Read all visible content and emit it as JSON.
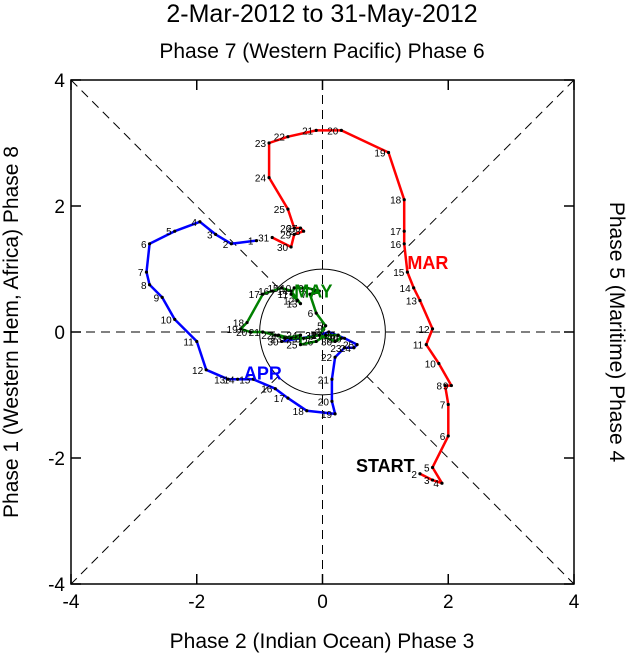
{
  "chart_data": {
    "type": "line",
    "title": "2-Mar-2012 to 31-May-2012",
    "top_label": "Phase 7 (Western Pacific) Phase 6",
    "bottom_label": "Phase 2 (Indian Ocean) Phase 3",
    "left_label": "Phase 1 (Western Hem, Africa) Phase 8",
    "right_label": "Phase 5 (Maritime) Phase 4",
    "xlim": [
      -4,
      4
    ],
    "ylim": [
      -4,
      4
    ],
    "xticks": [
      "-4",
      "-2",
      "0",
      "2",
      "4"
    ],
    "yticks": [
      "-4",
      "-2",
      "0",
      "2",
      "4"
    ],
    "start_label": "START",
    "colors": {
      "MAR": "#ff0000",
      "APR": "#0000ff",
      "MAY": "#008000"
    },
    "series": [
      {
        "name": "MAR",
        "color": "#ff0000",
        "label_pos": [
          1.35,
          1.0
        ],
        "points": [
          {
            "day": "2",
            "x": 1.55,
            "y": -2.25
          },
          {
            "day": "3",
            "x": 1.75,
            "y": -2.35
          },
          {
            "day": "4",
            "x": 1.9,
            "y": -2.4
          },
          {
            "day": "5",
            "x": 1.75,
            "y": -2.15
          },
          {
            "day": "6",
            "x": 2.0,
            "y": -1.65
          },
          {
            "day": "7",
            "x": 2.0,
            "y": -1.15
          },
          {
            "day": "8",
            "x": 1.95,
            "y": -0.85
          },
          {
            "day": "9",
            "x": 2.05,
            "y": -0.85
          },
          {
            "day": "10",
            "x": 1.85,
            "y": -0.5
          },
          {
            "day": "11",
            "x": 1.65,
            "y": -0.2
          },
          {
            "day": "12",
            "x": 1.75,
            "y": 0.05
          },
          {
            "day": "13",
            "x": 1.55,
            "y": 0.5
          },
          {
            "day": "14",
            "x": 1.45,
            "y": 0.7
          },
          {
            "day": "15",
            "x": 1.35,
            "y": 0.95
          },
          {
            "day": "16",
            "x": 1.3,
            "y": 1.4
          },
          {
            "day": "17",
            "x": 1.3,
            "y": 1.6
          },
          {
            "day": "18",
            "x": 1.3,
            "y": 2.1
          },
          {
            "day": "19",
            "x": 1.05,
            "y": 2.85
          },
          {
            "day": "20",
            "x": 0.3,
            "y": 3.2
          },
          {
            "day": "21",
            "x": -0.1,
            "y": 3.2
          },
          {
            "day": "22",
            "x": -0.55,
            "y": 3.1
          },
          {
            "day": "23",
            "x": -0.85,
            "y": 3.0
          },
          {
            "day": "24",
            "x": -0.85,
            "y": 2.45
          },
          {
            "day": "25",
            "x": -0.55,
            "y": 1.95
          },
          {
            "day": "26",
            "x": -0.45,
            "y": 1.65
          },
          {
            "day": "27",
            "x": -0.35,
            "y": 1.65
          },
          {
            "day": "28",
            "x": -0.3,
            "y": 1.6
          },
          {
            "day": "29",
            "x": -0.45,
            "y": 1.55
          },
          {
            "day": "30",
            "x": -0.5,
            "y": 1.35
          },
          {
            "day": "31",
            "x": -0.8,
            "y": 1.5
          }
        ]
      },
      {
        "name": "APR",
        "color": "#0000ff",
        "label_pos": [
          -1.25,
          -0.75
        ],
        "points": [
          {
            "day": "1",
            "x": -1.05,
            "y": 1.45
          },
          {
            "day": "2",
            "x": -1.45,
            "y": 1.4
          },
          {
            "day": "3",
            "x": -1.7,
            "y": 1.55
          },
          {
            "day": "4",
            "x": -1.95,
            "y": 1.75
          },
          {
            "day": "5",
            "x": -2.35,
            "y": 1.6
          },
          {
            "day": "6",
            "x": -2.75,
            "y": 1.4
          },
          {
            "day": "7",
            "x": -2.8,
            "y": 0.95
          },
          {
            "day": "8",
            "x": -2.75,
            "y": 0.75
          },
          {
            "day": "9",
            "x": -2.55,
            "y": 0.55
          },
          {
            "day": "10",
            "x": -2.35,
            "y": 0.2
          },
          {
            "day": "11",
            "x": -2.0,
            "y": -0.15
          },
          {
            "day": "12",
            "x": -1.85,
            "y": -0.6
          },
          {
            "day": "13",
            "x": -1.5,
            "y": -0.75
          },
          {
            "day": "14",
            "x": -1.35,
            "y": -0.75
          },
          {
            "day": "15",
            "x": -1.1,
            "y": -0.75
          },
          {
            "day": "16",
            "x": -0.75,
            "y": -0.9
          },
          {
            "day": "17",
            "x": -0.55,
            "y": -1.05
          },
          {
            "day": "18",
            "x": -0.25,
            "y": -1.25
          },
          {
            "day": "19",
            "x": 0.2,
            "y": -1.3
          },
          {
            "day": "20",
            "x": 0.15,
            "y": -1.1
          },
          {
            "day": "21",
            "x": 0.15,
            "y": -0.75
          },
          {
            "day": "22",
            "x": 0.2,
            "y": -0.4
          },
          {
            "day": "23",
            "x": 0.35,
            "y": -0.25
          },
          {
            "day": "24",
            "x": 0.5,
            "y": -0.25
          },
          {
            "day": "25",
            "x": 0.55,
            "y": -0.2
          },
          {
            "day": "26",
            "x": 0.35,
            "y": -0.1
          },
          {
            "day": "27",
            "x": 0.1,
            "y": 0.0
          },
          {
            "day": "28",
            "x": -0.05,
            "y": -0.05
          },
          {
            "day": "29",
            "x": -0.35,
            "y": -0.1
          },
          {
            "day": "30",
            "x": -0.65,
            "y": -0.15
          }
        ]
      },
      {
        "name": "MAY",
        "color": "#008000",
        "label_pos": [
          -0.45,
          0.55
        ],
        "points": [
          {
            "day": "1",
            "x": -0.7,
            "y": -0.05
          },
          {
            "day": "2",
            "x": -0.5,
            "y": -0.1
          },
          {
            "day": "3",
            "x": -0.3,
            "y": -0.1
          },
          {
            "day": "4",
            "x": -0.05,
            "y": -0.05
          },
          {
            "day": "5",
            "x": 0.05,
            "y": 0.1
          },
          {
            "day": "6",
            "x": -0.1,
            "y": 0.3
          },
          {
            "day": "7",
            "x": -0.2,
            "y": 0.6
          },
          {
            "day": "8",
            "x": -0.05,
            "y": 0.65
          },
          {
            "day": "9",
            "x": -0.25,
            "y": 0.7
          },
          {
            "day": "10",
            "x": -0.45,
            "y": 0.7
          },
          {
            "day": "11",
            "x": -0.5,
            "y": 0.6
          },
          {
            "day": "12",
            "x": -0.4,
            "y": 0.5
          },
          {
            "day": "13",
            "x": -0.35,
            "y": 0.45
          },
          {
            "day": "14",
            "x": -0.5,
            "y": 0.65
          },
          {
            "day": "15",
            "x": -0.65,
            "y": 0.7
          },
          {
            "day": "16",
            "x": -0.8,
            "y": 0.65
          },
          {
            "day": "17",
            "x": -0.95,
            "y": 0.6
          },
          {
            "day": "18",
            "x": -1.2,
            "y": 0.15
          },
          {
            "day": "19",
            "x": -1.3,
            "y": 0.05
          },
          {
            "day": "20",
            "x": -1.15,
            "y": 0.0
          },
          {
            "day": "21",
            "x": -0.95,
            "y": 0.0
          },
          {
            "day": "22",
            "x": -0.75,
            "y": -0.05
          },
          {
            "day": "23",
            "x": -0.6,
            "y": -0.1
          },
          {
            "day": "24",
            "x": -0.35,
            "y": -0.05
          },
          {
            "day": "25",
            "x": -0.35,
            "y": -0.2
          },
          {
            "day": "26",
            "x": -0.1,
            "y": -0.15
          },
          {
            "day": "27",
            "x": 0.05,
            "y": -0.05
          },
          {
            "day": "28",
            "x": 0.25,
            "y": -0.05
          },
          {
            "day": "29",
            "x": 0.3,
            "y": -0.1
          },
          {
            "day": "30",
            "x": 0.2,
            "y": -0.15
          },
          {
            "day": "31",
            "x": -0.05,
            "y": -0.05
          }
        ]
      }
    ]
  }
}
